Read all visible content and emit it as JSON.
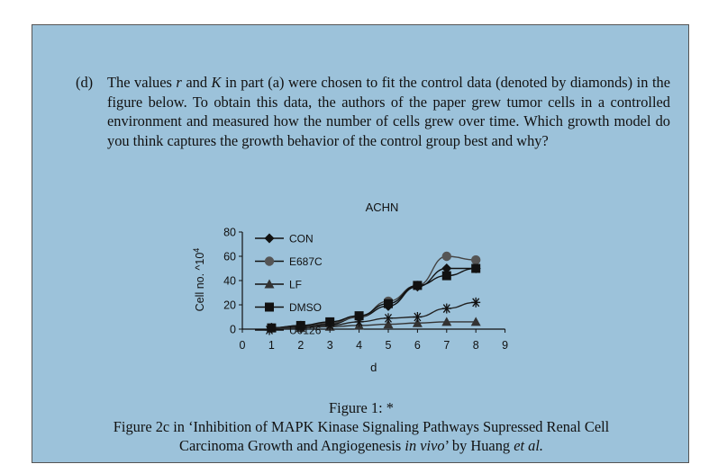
{
  "question": {
    "label": "(d)",
    "text_before_r": "The values",
    "var_r": "r",
    "text_and": "and",
    "var_K": "K",
    "text_after_K": "in part (a) were chosen to fit the control data (denoted by diamonds) in the figure below. To obtain this data, the authors of the paper grew tumor cells in a controlled environment and measured how the number of cells grew over time. Which growth model do you think captures the growth behavior of the control group best and why?"
  },
  "chart_data": {
    "type": "line",
    "title": "ACHN",
    "xlabel": "d",
    "ylabel": "Cell no. ^10",
    "ylabel_exponent": "4",
    "x_ticks": [
      "0",
      "1",
      "2",
      "3",
      "4",
      "5",
      "6",
      "7",
      "8",
      "9"
    ],
    "y_ticks": [
      "0",
      "20",
      "40",
      "60",
      "80"
    ],
    "xlim": [
      0,
      9
    ],
    "ylim": [
      0,
      80
    ],
    "legend_position": "top-left",
    "series": [
      {
        "name": "CON",
        "marker": "diamond",
        "x": [
          1,
          2,
          3,
          4,
          5,
          6,
          7,
          8
        ],
        "values": [
          1,
          2,
          4,
          10,
          19,
          35,
          50,
          50
        ]
      },
      {
        "name": "E687C",
        "marker": "circle",
        "x": [
          1,
          2,
          3,
          4,
          5,
          6,
          7,
          8
        ],
        "values": [
          1,
          3,
          5,
          10,
          23,
          36,
          60,
          57
        ]
      },
      {
        "name": "LF",
        "marker": "triangle",
        "x": [
          1,
          2,
          3,
          4,
          5,
          6,
          7,
          8
        ],
        "values": [
          1,
          1,
          2,
          3,
          4,
          5,
          6,
          6
        ]
      },
      {
        "name": "DMSO",
        "marker": "square",
        "x": [
          1,
          2,
          3,
          4,
          5,
          6,
          7,
          8
        ],
        "values": [
          1,
          3,
          6,
          11,
          21,
          36,
          44,
          50
        ]
      },
      {
        "name": "U0126",
        "marker": "asterisk",
        "x": [
          1,
          2,
          3,
          4,
          5,
          6,
          7,
          8
        ],
        "values": [
          1,
          2,
          3,
          6,
          9,
          10,
          17,
          22
        ]
      }
    ]
  },
  "caption": {
    "figure_label": "Figure 1: *",
    "line1": "Figure 2c in ‘Inhibition of MAPK Kinase Signaling Pathways Supressed Renal Cell",
    "line2_start": "Carcinoma Growth and Angiogenesis",
    "line2_italic": "in vivo",
    "line2_mid": "’ by Huang",
    "line2_etal": "et al."
  }
}
